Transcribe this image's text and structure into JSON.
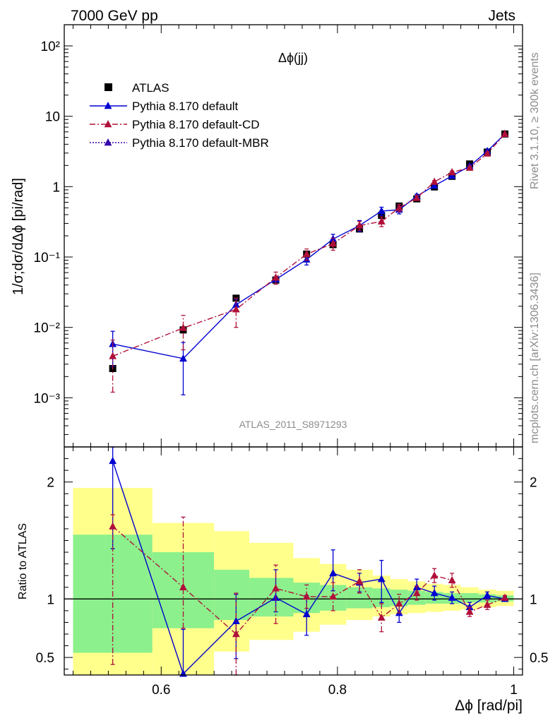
{
  "header": {
    "left": "7000 GeV pp",
    "right": "Jets"
  },
  "side_text": {
    "rivet": "Rivet 3.1.10, ≥ 300k events",
    "mcplots": "mcplots.cern.ch [arXiv:1306.3436]"
  },
  "chart_data": [
    {
      "type": "scatter",
      "title": "Δϕ(jj)",
      "analysis_label": "ATLAS_2011_S8971293",
      "ylabel": "1/σ;dσ/dΔϕ [pi/rad]",
      "yscale": "log",
      "ylim": [
        0.0002,
        200
      ],
      "xlim": [
        0.49,
        1.01
      ],
      "ytick_labels": [
        "10⁻³",
        "10⁻²",
        "10⁻¹",
        "1",
        "10",
        "10²"
      ],
      "legend_position": "top-left",
      "series": [
        {
          "name": "ATLAS",
          "color": "#000000",
          "marker": "square",
          "x": [
            0.545,
            0.625,
            0.685,
            0.73,
            0.765,
            0.795,
            0.825,
            0.85,
            0.87,
            0.89,
            0.91,
            0.93,
            0.95,
            0.97,
            0.99
          ],
          "y": [
            0.0026,
            0.0092,
            0.026,
            0.047,
            0.11,
            0.15,
            0.25,
            0.39,
            0.53,
            0.67,
            0.99,
            1.4,
            2.1,
            3.1,
            5.6
          ]
        },
        {
          "name": "Pythia 8.170 default",
          "color": "#0000d0",
          "marker": "triangle",
          "line": "solid",
          "x": [
            0.545,
            0.625,
            0.685,
            0.73,
            0.765,
            0.795,
            0.825,
            0.85,
            0.87,
            0.89,
            0.91,
            0.93,
            0.95,
            0.97,
            0.99
          ],
          "y": [
            0.0058,
            0.0036,
            0.021,
            0.048,
            0.092,
            0.18,
            0.28,
            0.45,
            0.47,
            0.73,
            1.03,
            1.42,
            1.95,
            3.2,
            5.6
          ],
          "err": [
            0.003,
            0.0025,
            0.004,
            0.004,
            0.015,
            0.03,
            0.05,
            0.06,
            0.06,
            0.05,
            0.05,
            0.05,
            0.06,
            0.08,
            0.1
          ]
        },
        {
          "name": "Pythia 8.170 default-CD",
          "color": "#b0103a",
          "marker": "triangle",
          "line": "dash-dot",
          "x": [
            0.545,
            0.625,
            0.685,
            0.73,
            0.765,
            0.795,
            0.825,
            0.85,
            0.87,
            0.89,
            0.91,
            0.93,
            0.95,
            0.97,
            0.99
          ],
          "y": [
            0.0039,
            0.0098,
            0.018,
            0.051,
            0.11,
            0.155,
            0.28,
            0.32,
            0.5,
            0.69,
            1.17,
            1.6,
            1.85,
            2.95,
            5.6
          ],
          "err": [
            0.0027,
            0.005,
            0.008,
            0.01,
            0.02,
            0.03,
            0.04,
            0.05,
            0.06,
            0.05,
            0.05,
            0.07,
            0.07,
            0.08,
            0.1
          ]
        },
        {
          "name": "Pythia 8.170 default-MBR",
          "color": "#3300aa",
          "marker": "triangle",
          "line": "dotted",
          "x": [],
          "y": []
        }
      ]
    },
    {
      "type": "scatter",
      "ylabel": "Ratio to ATLAS",
      "xlabel": "Δϕ [rad/pi]",
      "ylim": [
        0.35,
        2.3
      ],
      "xlim": [
        0.49,
        1.01
      ],
      "xticks": [
        0.6,
        0.8,
        1
      ],
      "xtick_labels": [
        "0.6",
        "0.8",
        "1"
      ],
      "yticks": [
        0.5,
        1,
        2
      ],
      "ytick_labels": [
        "0.5",
        "1",
        "2"
      ],
      "bands": {
        "edges": [
          0.5,
          0.59,
          0.66,
          0.7,
          0.75,
          0.78,
          0.81,
          0.84,
          0.86,
          0.88,
          0.9,
          0.92,
          0.94,
          0.96,
          0.98,
          1.0
        ],
        "outer_low": [
          0.33,
          0.33,
          0.55,
          0.65,
          0.72,
          0.78,
          0.82,
          0.85,
          0.87,
          0.88,
          0.89,
          0.9,
          0.91,
          0.93,
          0.94
        ],
        "outer_high": [
          1.95,
          1.65,
          1.58,
          1.48,
          1.35,
          1.3,
          1.25,
          1.2,
          1.17,
          1.15,
          1.13,
          1.12,
          1.1,
          1.08,
          1.07
        ],
        "inner_low": [
          0.54,
          0.75,
          0.82,
          0.85,
          0.88,
          0.9,
          0.92,
          0.93,
          0.94,
          0.95,
          0.96,
          0.96,
          0.97,
          0.97,
          0.98
        ],
        "inner_high": [
          1.55,
          1.4,
          1.25,
          1.18,
          1.14,
          1.12,
          1.1,
          1.09,
          1.08,
          1.07,
          1.06,
          1.05,
          1.05,
          1.04,
          1.03
        ],
        "outer_color": "#ffff8c",
        "inner_color": "#8cf08c"
      },
      "series": [
        {
          "name": "Pythia 8.170 default",
          "color": "#0000d0",
          "x": [
            0.545,
            0.625,
            0.685,
            0.73,
            0.765,
            0.795,
            0.825,
            0.85,
            0.87,
            0.89,
            0.91,
            0.93,
            0.95,
            0.97,
            0.99
          ],
          "y": [
            2.18,
            0.36,
            0.81,
            1.01,
            0.87,
            1.22,
            1.14,
            1.17,
            0.88,
            1.1,
            1.05,
            1.01,
            0.93,
            1.03,
            1.0
          ],
          "err_low": [
            0.75,
            0.0,
            0.32,
            0.12,
            0.18,
            0.15,
            0.08,
            0.2,
            0.08,
            0.06,
            0.06,
            0.05,
            0.04,
            0.03,
            0.02
          ],
          "err_high": [
            0.4,
            0.38,
            0.23,
            0.24,
            0.16,
            0.2,
            0.08,
            0.16,
            0.08,
            0.07,
            0.06,
            0.05,
            0.04,
            0.03,
            0.02
          ]
        },
        {
          "name": "Pythia 8.170 default-CD",
          "color": "#b0103a",
          "x": [
            0.545,
            0.625,
            0.685,
            0.73,
            0.765,
            0.795,
            0.825,
            0.85,
            0.87,
            0.89,
            0.91,
            0.93,
            0.95,
            0.97,
            0.99
          ],
          "y": [
            1.62,
            1.1,
            0.7,
            1.09,
            1.02,
            1.02,
            1.15,
            0.84,
            0.96,
            1.05,
            1.2,
            1.16,
            0.89,
            0.95,
            1.01
          ],
          "err_low": [
            1.18,
            0.35,
            0.35,
            0.3,
            0.1,
            0.12,
            0.1,
            0.12,
            0.08,
            0.06,
            0.06,
            0.06,
            0.04,
            0.04,
            0.02
          ],
          "err_high": [
            0.1,
            0.6,
            0.35,
            0.2,
            0.1,
            0.12,
            0.1,
            0.12,
            0.08,
            0.06,
            0.06,
            0.06,
            0.04,
            0.04,
            0.02
          ]
        }
      ]
    }
  ]
}
